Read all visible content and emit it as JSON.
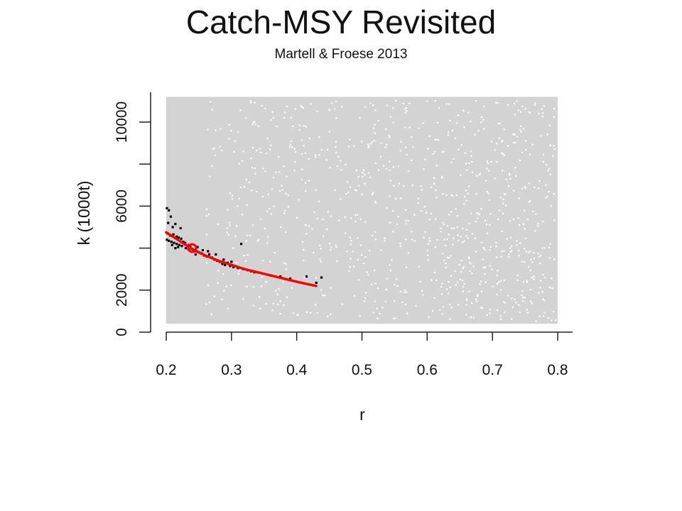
{
  "slide": {
    "title": "Catch-MSY Revisited",
    "subtitle": "Martell & Froese 2013"
  },
  "chart_data": {
    "type": "scatter",
    "xlabel": "r",
    "ylabel": "k (1000t)",
    "xlim": [
      0.2,
      0.8
    ],
    "ylim": [
      0,
      11000
    ],
    "x_ticks": [
      "0.2",
      "0.3",
      "0.4",
      "0.5",
      "0.6",
      "0.7",
      "0.8"
    ],
    "y_ticks": [
      "0",
      "2000",
      "6000",
      "10000"
    ],
    "y_minor_ticks": [
      4000,
      8000
    ],
    "grid": false,
    "background_sample_region": {
      "r": [
        0.2,
        0.8
      ],
      "k": [
        400,
        11200
      ],
      "color": "#d3d3d3"
    },
    "series": [
      {
        "role": "viable r-k pairs",
        "color": "#000000",
        "points": [
          [
            0.201,
            5900
          ],
          [
            0.204,
            5800
          ],
          [
            0.207,
            5500
          ],
          [
            0.203,
            5200
          ],
          [
            0.214,
            5150
          ],
          [
            0.21,
            5000
          ],
          [
            0.222,
            4950
          ],
          [
            0.202,
            4700
          ],
          [
            0.206,
            4600
          ],
          [
            0.211,
            4650
          ],
          [
            0.216,
            4550
          ],
          [
            0.219,
            4500
          ],
          [
            0.201,
            4400
          ],
          [
            0.204,
            4350
          ],
          [
            0.208,
            4300
          ],
          [
            0.212,
            4250
          ],
          [
            0.216,
            4200
          ],
          [
            0.22,
            4150
          ],
          [
            0.224,
            4100
          ],
          [
            0.209,
            4150
          ],
          [
            0.214,
            4000
          ],
          [
            0.218,
            4050
          ],
          [
            0.226,
            4300
          ],
          [
            0.23,
            4000
          ],
          [
            0.234,
            3950
          ],
          [
            0.237,
            4050
          ],
          [
            0.242,
            3900
          ],
          [
            0.246,
            3850
          ],
          [
            0.25,
            3800
          ],
          [
            0.245,
            3700
          ],
          [
            0.254,
            3750
          ],
          [
            0.258,
            3650
          ],
          [
            0.262,
            3600
          ],
          [
            0.266,
            3700
          ],
          [
            0.27,
            3550
          ],
          [
            0.274,
            3450
          ],
          [
            0.278,
            3400
          ],
          [
            0.282,
            3350
          ],
          [
            0.286,
            3250
          ],
          [
            0.29,
            3200
          ],
          [
            0.294,
            3300
          ],
          [
            0.298,
            3150
          ],
          [
            0.303,
            3100
          ],
          [
            0.31,
            3050
          ],
          [
            0.315,
            4200
          ],
          [
            0.318,
            3000
          ],
          [
            0.325,
            2950
          ],
          [
            0.33,
            2900
          ],
          [
            0.335,
            2850
          ],
          [
            0.34,
            2850
          ],
          [
            0.36,
            2700
          ],
          [
            0.375,
            2650
          ],
          [
            0.39,
            2550
          ],
          [
            0.415,
            2650
          ],
          [
            0.43,
            2350
          ],
          [
            0.438,
            2600
          ],
          [
            0.223,
            4450
          ],
          [
            0.229,
            4250
          ],
          [
            0.235,
            4150
          ],
          [
            0.24,
            3950
          ],
          [
            0.248,
            4050
          ],
          [
            0.256,
            3900
          ],
          [
            0.264,
            3850
          ],
          [
            0.276,
            3700
          ],
          [
            0.288,
            3450
          ],
          [
            0.3,
            3350
          ]
        ]
      },
      {
        "role": "fitted r-k curve",
        "color": "#ff0000",
        "x": [
          0.2,
          0.22,
          0.24,
          0.26,
          0.28,
          0.3,
          0.32,
          0.34,
          0.36,
          0.38,
          0.4,
          0.43
        ],
        "y": [
          4750,
          4350,
          3950,
          3650,
          3400,
          3200,
          3000,
          2850,
          2700,
          2550,
          2400,
          2200
        ]
      },
      {
        "role": "most probable r-k",
        "color": "#ff0000",
        "points": [
          [
            0.24,
            4000
          ]
        ]
      }
    ]
  }
}
